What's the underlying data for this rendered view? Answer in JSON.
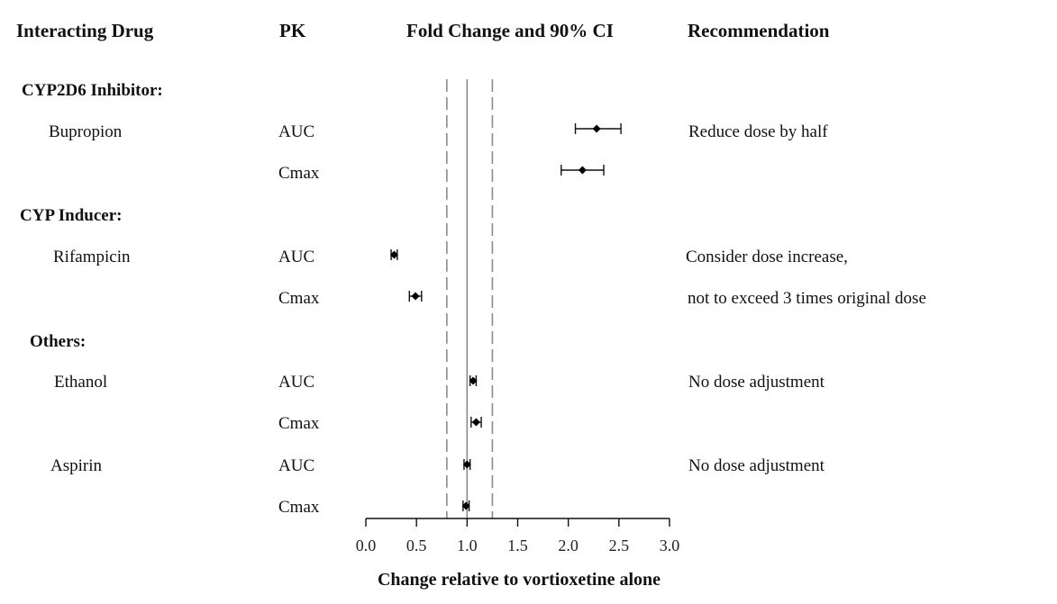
{
  "headers": {
    "drug": "Interacting Drug",
    "pk": "PK",
    "fold": "Fold Change and 90% CI",
    "recommendation": "Recommendation"
  },
  "groups": [
    {
      "label": "CYP2D6 Inhibitor:"
    },
    {
      "label": "CYP Inducer:"
    },
    {
      "label": "Others:"
    }
  ],
  "drugs": [
    {
      "name": "Bupropion",
      "recommendation": "Reduce dose by half"
    },
    {
      "name": "Rifampicin",
      "recommendation": "Consider dose increase,",
      "recommendation2": "not to exceed 3 times original dose"
    },
    {
      "name": "Ethanol",
      "recommendation": "No dose adjustment"
    },
    {
      "name": "Aspirin",
      "recommendation": "No dose adjustment"
    }
  ],
  "chart_data": {
    "type": "forest",
    "xlabel": "Change relative to vortioxetine alone",
    "xlim": [
      0,
      3
    ],
    "xticks": [
      "0.0",
      "0.5",
      "1.0",
      "1.5",
      "2.0",
      "2.5",
      "3.0"
    ],
    "xtick_values": [
      0,
      0.5,
      1.0,
      1.5,
      2.0,
      2.5,
      3.0
    ],
    "reference_line": 1.0,
    "bounds_lines": [
      0.8,
      1.25
    ],
    "rows": [
      {
        "drug": "Bupropion",
        "pk": "AUC",
        "estimate": 2.28,
        "lower": 2.07,
        "upper": 2.52
      },
      {
        "drug": "Bupropion",
        "pk": "Cmax",
        "estimate": 2.14,
        "lower": 1.93,
        "upper": 2.35
      },
      {
        "drug": "Rifampicin",
        "pk": "AUC",
        "estimate": 0.28,
        "lower": 0.25,
        "upper": 0.31
      },
      {
        "drug": "Rifampicin",
        "pk": "Cmax",
        "estimate": 0.49,
        "lower": 0.43,
        "upper": 0.55
      },
      {
        "drug": "Ethanol",
        "pk": "AUC",
        "estimate": 1.06,
        "lower": 1.03,
        "upper": 1.09
      },
      {
        "drug": "Ethanol",
        "pk": "Cmax",
        "estimate": 1.09,
        "lower": 1.04,
        "upper": 1.14
      },
      {
        "drug": "Aspirin",
        "pk": "AUC",
        "estimate": 1.0,
        "lower": 0.97,
        "upper": 1.03
      },
      {
        "drug": "Aspirin",
        "pk": "Cmax",
        "estimate": 0.99,
        "lower": 0.96,
        "upper": 1.02
      }
    ]
  }
}
